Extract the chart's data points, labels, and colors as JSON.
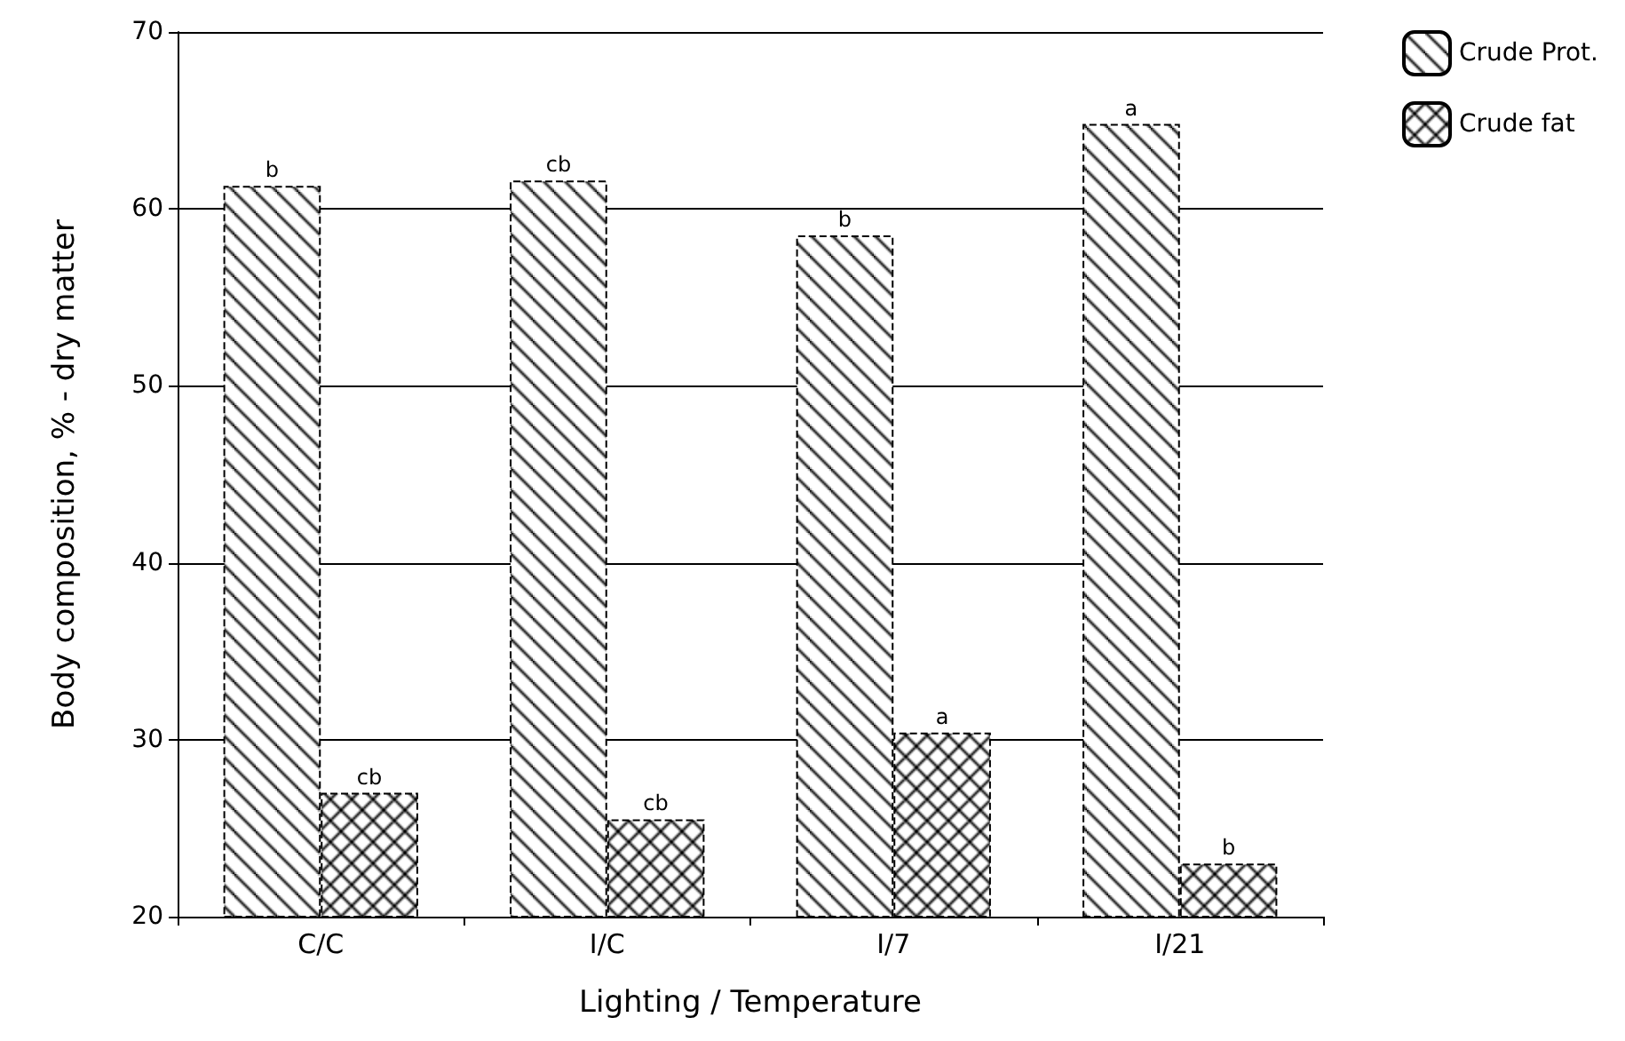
{
  "chart_data": {
    "type": "bar",
    "xlabel": "Lighting / Temperature",
    "ylabel": "Body composition, % - dry matter",
    "categories": [
      "C/C",
      "I/C",
      "I/7",
      "I/21"
    ],
    "series": [
      {
        "name": "Crude Prot.",
        "color": "#000000",
        "values": [
          61.3,
          61.6,
          58.5,
          64.8
        ]
      },
      {
        "name": "Crude fat",
        "color": "#000000",
        "values": [
          27,
          25.5,
          30.4,
          23
        ]
      }
    ],
    "ylim": [
      20,
      70
    ],
    "yticks": [
      20,
      30,
      40,
      50,
      60,
      70
    ],
    "grid": "y",
    "legend": "top right",
    "annotations": [
      {
        "text": "b",
        "x": "C/C",
        "y": 61.3
      },
      {
        "text": "cb",
        "x": "I/C",
        "y": 61.6
      },
      {
        "text": "b",
        "x": "I/7",
        "y": 58.5
      },
      {
        "text": "a",
        "x": "I/21",
        "y": 64.8
      },
      {
        "text": "cb",
        "x": "C/C",
        "y": 27
      },
      {
        "text": "cb",
        "x": "I/C",
        "y": 25.5
      },
      {
        "text": "a",
        "x": "I/7",
        "y": 30.4
      },
      {
        "text": "b",
        "x": "I/21",
        "y": 23
      }
    ]
  }
}
